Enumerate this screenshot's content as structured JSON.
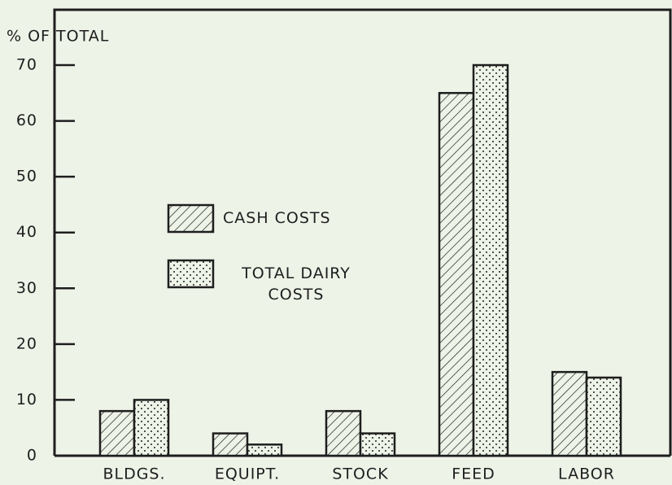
{
  "chart_data": {
    "type": "bar",
    "y_label": "% OF TOTAL",
    "categories": [
      "BLDGS.",
      "EQUIPT.",
      "STOCK",
      "FEED",
      "LABOR"
    ],
    "series": [
      {
        "name": "CASH COSTS",
        "color": "#1e1e1e",
        "pattern": "hatch",
        "values": [
          8,
          4,
          8,
          65,
          15
        ]
      },
      {
        "name": "TOTAL DAIRY COSTS",
        "color": "#1e1e1e",
        "pattern": "dots",
        "values": [
          10,
          2,
          4,
          70,
          14
        ]
      }
    ],
    "ylim": [
      0,
      70
    ],
    "yticks": [
      0,
      10,
      20,
      30,
      40,
      50,
      60,
      70
    ],
    "legend": "center-left"
  }
}
